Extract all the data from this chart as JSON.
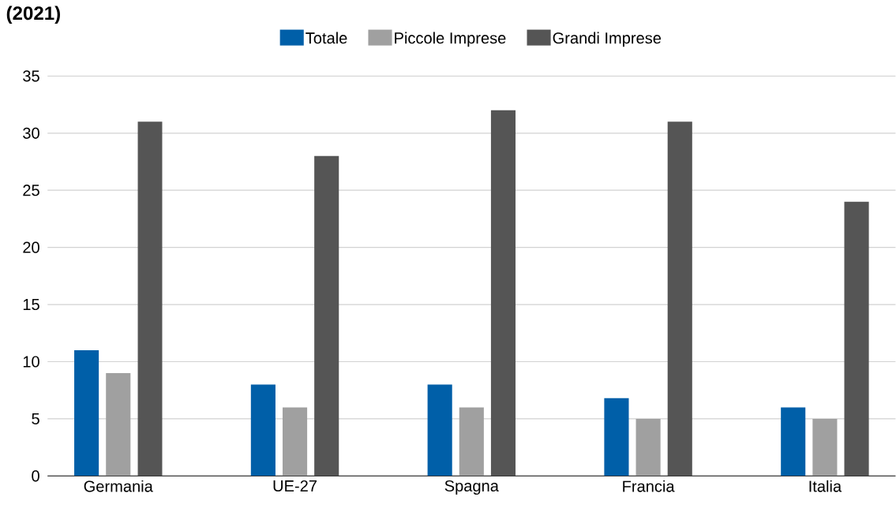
{
  "chart_data": {
    "type": "bar",
    "title": "(2021)",
    "categories": [
      "Germania",
      "UE-27",
      "Spagna",
      "Francia",
      "Italia"
    ],
    "series": [
      {
        "name": "Totale",
        "color": "#005fa8",
        "values": [
          11,
          8,
          8,
          6.8,
          6
        ]
      },
      {
        "name": "Piccole Imprese",
        "color": "#a0a0a0",
        "values": [
          9,
          6,
          6,
          5,
          5
        ]
      },
      {
        "name": "Grandi Imprese",
        "color": "#555555",
        "values": [
          31,
          28,
          32,
          31,
          24
        ]
      }
    ],
    "ylim": [
      0,
      35
    ],
    "yticks": [
      0,
      5,
      10,
      15,
      20,
      25,
      30,
      35
    ],
    "grid": "y",
    "legend": "top"
  }
}
